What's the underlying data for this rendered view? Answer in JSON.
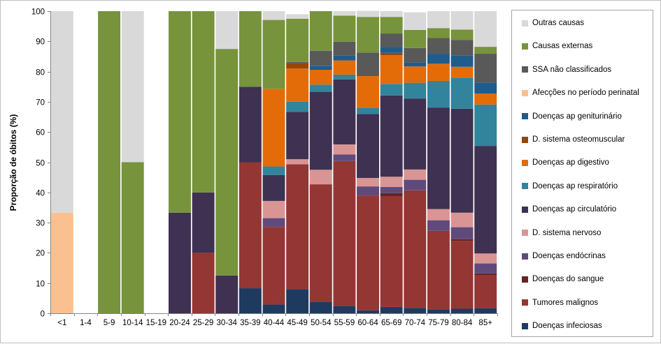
{
  "chart_data": {
    "type": "bar",
    "stacked": true,
    "ylabel": "Proporção de óbitos (%)",
    "xlabel": "",
    "ylim": [
      0,
      100
    ],
    "yticks": [
      0,
      10,
      20,
      30,
      40,
      50,
      60,
      70,
      80,
      90,
      100
    ],
    "grid": false,
    "legend_position": "right",
    "categories": [
      "<1",
      "1-4",
      "5-9",
      "10-14",
      "15-19",
      "20-24",
      "25-29",
      "30-34",
      "35-39",
      "40-44",
      "45-49",
      "50-54",
      "55-59",
      "60-64",
      "65-69",
      "70-74",
      "75-79",
      "80-84",
      "85+"
    ],
    "series": [
      {
        "name": "Doenças infeciosas",
        "color": "#1f3a5f",
        "values": [
          0,
          0,
          0,
          0,
          0,
          0,
          0,
          0,
          8.3,
          2.9,
          8.0,
          3.7,
          2.4,
          1.0,
          2.1,
          1.8,
          1.3,
          1.5,
          1.7
        ]
      },
      {
        "name": "Tumores malignos",
        "color": "#943634",
        "values": [
          0,
          0,
          0,
          0,
          0,
          0,
          20.0,
          0,
          41.7,
          25.7,
          41.3,
          39.0,
          48.0,
          38.0,
          36.7,
          38.9,
          26.0,
          22.5,
          11.0
        ]
      },
      {
        "name": "Doenças do sangue",
        "color": "#632523",
        "values": [
          0,
          0,
          0,
          0,
          0,
          0,
          0,
          0,
          0,
          0,
          0,
          0,
          0,
          0,
          1.0,
          0,
          0,
          0.5,
          0.5
        ]
      },
      {
        "name": "Doenças endócrinas",
        "color": "#604a7b",
        "values": [
          0,
          0,
          0,
          0,
          0,
          0,
          0,
          0,
          0,
          2.9,
          0,
          0,
          2.2,
          3.0,
          2.0,
          3.5,
          3.5,
          4.0,
          3.3
        ]
      },
      {
        "name": "D. sistema nervoso",
        "color": "#d99594",
        "values": [
          0,
          0,
          0,
          0,
          0,
          0,
          0,
          0,
          0,
          5.7,
          1.7,
          4.8,
          3.3,
          2.8,
          3.4,
          3.4,
          3.7,
          4.8,
          3.3
        ]
      },
      {
        "name": "Doenças ap circulatório",
        "color": "#3f3151",
        "values": [
          0,
          0,
          0,
          0,
          0,
          33.3,
          20.0,
          12.5,
          25.0,
          8.6,
          15.7,
          25.8,
          21.5,
          21.2,
          26.9,
          23.5,
          33.6,
          34.4,
          35.6
        ]
      },
      {
        "name": "Doenças ap respiratório",
        "color": "#31849b",
        "values": [
          0,
          0,
          0,
          0,
          0,
          0,
          0,
          0,
          0,
          2.8,
          3.3,
          2.4,
          1.6,
          2.0,
          3.8,
          5.2,
          8.8,
          10.3,
          13.7
        ]
      },
      {
        "name": "Doenças ap digestivo",
        "color": "#e36c09",
        "values": [
          0,
          0,
          0,
          0,
          0,
          0,
          0,
          0,
          0,
          25.7,
          11.0,
          4.9,
          4.7,
          10.5,
          9.5,
          5.4,
          5.7,
          3.6,
          3.6
        ]
      },
      {
        "name": "D. sistema osteomuscular",
        "color": "#974706",
        "values": [
          0,
          0,
          0,
          0,
          0,
          0,
          0,
          0,
          0,
          0,
          1.7,
          0,
          0,
          0,
          0.8,
          0,
          0,
          0,
          0
        ]
      },
      {
        "name": "Doenças ap geniturinário",
        "color": "#1f5c8b",
        "values": [
          0,
          0,
          0,
          0,
          0,
          0,
          0,
          0,
          0,
          0,
          0,
          1.2,
          1.6,
          0,
          2.0,
          1.4,
          3.3,
          3.7,
          3.7
        ]
      },
      {
        "name": "Afecções no período perinatal",
        "color": "#fac090",
        "values": [
          33.3,
          0,
          0,
          0,
          0,
          0,
          0,
          0,
          0,
          0,
          0,
          0,
          0,
          0,
          0,
          0,
          0,
          0,
          0
        ]
      },
      {
        "name": "SSA não classificados",
        "color": "#595959",
        "values": [
          0,
          0,
          0,
          0,
          0,
          0,
          0,
          0,
          0,
          0,
          0.5,
          5.1,
          4.6,
          7.8,
          4.4,
          4.7,
          5.2,
          5.2,
          9.5
        ]
      },
      {
        "name": "Causas externas",
        "color": "#77933c",
        "values": [
          0,
          0,
          100,
          50.0,
          0,
          66.7,
          60.0,
          75.0,
          25.0,
          22.8,
          14.3,
          13.1,
          8.6,
          11.8,
          5.5,
          6.0,
          3.3,
          3.4,
          2.3
        ]
      },
      {
        "name": "Outras causas",
        "color": "#d9d9d9",
        "values": [
          66.7,
          0,
          0,
          50.0,
          0,
          0,
          0,
          12.5,
          0,
          2.9,
          1.5,
          0,
          1.5,
          2.0,
          1.9,
          5.8,
          5.6,
          6.1,
          11.8
        ]
      }
    ],
    "legend_order": [
      "Outras causas",
      "Causas externas",
      "SSA não classificados",
      "Afecções no período perinatal",
      "Doenças ap geniturinário",
      "D. sistema osteomuscular",
      "Doenças ap digestivo",
      "Doenças ap respiratório",
      "Doenças ap circulatório",
      "D. sistema nervoso",
      "Doenças endócrinas",
      "Doenças do sangue",
      "Tumores malignos",
      "Doenças infeciosas"
    ]
  }
}
